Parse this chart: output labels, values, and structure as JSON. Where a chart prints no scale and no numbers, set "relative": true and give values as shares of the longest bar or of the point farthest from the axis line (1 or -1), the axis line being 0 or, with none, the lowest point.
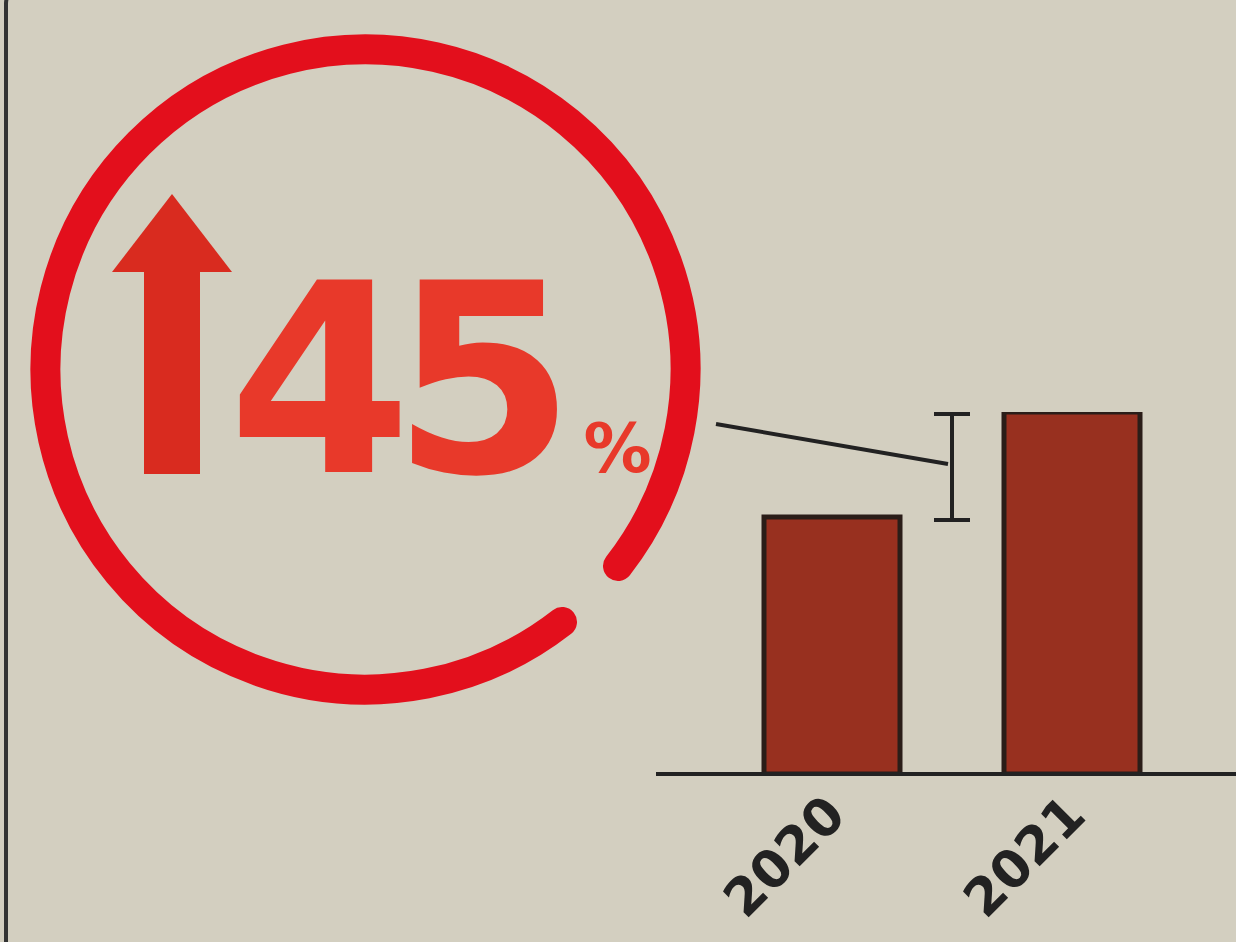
{
  "chart_data": {
    "type": "bar",
    "relative": true,
    "categories": [
      "2020",
      "2021"
    ],
    "values": [
      0.71,
      1
    ],
    "color": "#98301f",
    "annotations": [
      "45%"
    ],
    "grid": false,
    "legend": false
  }
}
